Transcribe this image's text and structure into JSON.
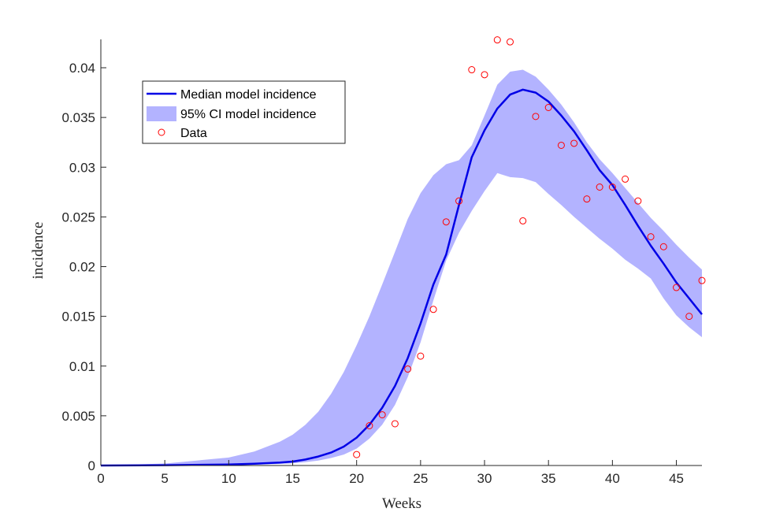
{
  "chart_data": {
    "type": "line",
    "xlabel": "Weeks",
    "ylabel": "incidence",
    "xlim": [
      0,
      47
    ],
    "ylim": [
      0,
      0.04
    ],
    "xticks": [
      0,
      5,
      10,
      15,
      20,
      25,
      30,
      35,
      40,
      45
    ],
    "yticks": [
      0,
      0.005,
      0.01,
      0.015,
      0.02,
      0.025,
      0.03,
      0.035,
      0.04
    ],
    "ytick_labels": [
      "0",
      "0.005",
      "0.01",
      "0.015",
      "0.02",
      "0.025",
      "0.03",
      "0.035",
      "0.04"
    ],
    "grid": false,
    "legend_position": "top-left",
    "colors": {
      "median": "#0000e6",
      "ci_fill": "#b3b3ff",
      "data": "#ff0000",
      "axis": "#262626"
    },
    "legend": [
      {
        "label": "Median model incidence",
        "kind": "line"
      },
      {
        "label": "95% CI model incidence",
        "kind": "band"
      },
      {
        "label": "Data",
        "kind": "marker"
      }
    ],
    "median": {
      "x": [
        0,
        5,
        10,
        12,
        14,
        15,
        16,
        17,
        18,
        19,
        20,
        21,
        22,
        23,
        24,
        25,
        26,
        27,
        28,
        29,
        30,
        31,
        32,
        33,
        34,
        35,
        36,
        37,
        38,
        39,
        40,
        41,
        42,
        43,
        44,
        45,
        46,
        47
      ],
      "y": [
        0,
        3e-05,
        0.0001,
        0.00018,
        0.0003,
        0.0004,
        0.0006,
        0.0009,
        0.0013,
        0.0019,
        0.0028,
        0.0041,
        0.0058,
        0.008,
        0.0108,
        0.0143,
        0.0182,
        0.0212,
        0.0262,
        0.031,
        0.0337,
        0.0359,
        0.0373,
        0.0378,
        0.0375,
        0.0366,
        0.0352,
        0.0336,
        0.0317,
        0.0297,
        0.0282,
        0.0262,
        0.0241,
        0.0221,
        0.0203,
        0.0184,
        0.0168,
        0.0152
      ]
    },
    "ci_upper": {
      "x": [
        0,
        5,
        10,
        12,
        14,
        15,
        16,
        17,
        18,
        19,
        20,
        21,
        22,
        23,
        24,
        25,
        26,
        27,
        28,
        29,
        30,
        31,
        32,
        33,
        34,
        35,
        36,
        37,
        38,
        39,
        40,
        41,
        42,
        43,
        44,
        45,
        46,
        47
      ],
      "y": [
        0,
        0.0002,
        0.0008,
        0.0014,
        0.0024,
        0.0031,
        0.0041,
        0.0054,
        0.0072,
        0.0094,
        0.0121,
        0.015,
        0.0182,
        0.0215,
        0.0248,
        0.0274,
        0.0292,
        0.0303,
        0.0307,
        0.0322,
        0.0352,
        0.0383,
        0.0396,
        0.0398,
        0.0391,
        0.0378,
        0.0363,
        0.0345,
        0.0325,
        0.0308,
        0.0294,
        0.0279,
        0.0264,
        0.0249,
        0.0236,
        0.0222,
        0.0209,
        0.0197
      ]
    },
    "ci_lower": {
      "x": [
        0,
        5,
        10,
        12,
        14,
        15,
        16,
        17,
        18,
        19,
        20,
        21,
        22,
        23,
        24,
        25,
        26,
        27,
        28,
        29,
        30,
        31,
        32,
        33,
        34,
        35,
        36,
        37,
        38,
        39,
        40,
        41,
        42,
        43,
        44,
        45,
        46,
        47
      ],
      "y": [
        0,
        1e-05,
        5e-05,
        9e-05,
        0.00016,
        0.00022,
        0.00033,
        0.0005,
        0.00075,
        0.0011,
        0.0017,
        0.0027,
        0.0041,
        0.0061,
        0.0089,
        0.0124,
        0.0166,
        0.0206,
        0.0234,
        0.0256,
        0.0276,
        0.0294,
        0.029,
        0.0289,
        0.0285,
        0.0273,
        0.0262,
        0.025,
        0.0239,
        0.0228,
        0.0218,
        0.0207,
        0.0198,
        0.0188,
        0.0168,
        0.0151,
        0.0139,
        0.0129
      ]
    },
    "data_points": {
      "x": [
        20,
        21,
        22,
        23,
        24,
        25,
        26,
        27,
        28,
        29,
        30,
        31,
        32,
        33,
        34,
        35,
        36,
        37,
        38,
        39,
        40,
        41,
        42,
        43,
        44,
        45,
        46,
        47
      ],
      "y": [
        0.0011,
        0.004,
        0.0051,
        0.0042,
        0.0097,
        0.011,
        0.0157,
        0.0245,
        0.0266,
        0.0398,
        0.0393,
        0.0428,
        0.0426,
        0.0246,
        0.0351,
        0.036,
        0.0322,
        0.0324,
        0.0268,
        0.028,
        0.028,
        0.0288,
        0.0266,
        0.023,
        0.022,
        0.0179,
        0.015,
        0.0186
      ]
    }
  }
}
